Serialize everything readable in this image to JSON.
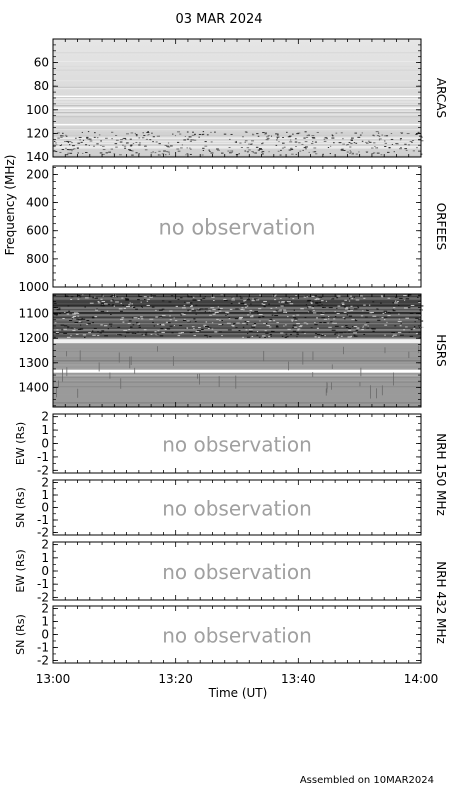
{
  "title": "03 MAR 2024",
  "footer": "Assembled on 10MAR2024",
  "xlabel": "Time (UT)",
  "x_ticks": [
    "13:00",
    "13:20",
    "13:40",
    "14:00"
  ],
  "freq_axis_label": "Frequency (MHz)",
  "no_observation_text": "no observation",
  "colors": {
    "frame": "#000000",
    "no_observation": "#a0a0a0"
  },
  "chart_data": [
    {
      "type": "heatmap",
      "instrument": "ARCAS",
      "observed": true,
      "ylim": [
        140,
        40
      ],
      "y_ticks": [
        60,
        80,
        100,
        120,
        140
      ],
      "xlim": [
        "13:00",
        "14:00"
      ]
    },
    {
      "type": "heatmap",
      "instrument": "ORFEES",
      "observed": false,
      "ylim": [
        1000,
        140
      ],
      "y_ticks": [
        200,
        400,
        600,
        800,
        1000
      ],
      "xlim": [
        "13:00",
        "14:00"
      ]
    },
    {
      "type": "heatmap",
      "instrument": "HSRS",
      "observed": true,
      "ylim": [
        1480,
        1020
      ],
      "y_ticks": [
        1100,
        1200,
        1300,
        1400
      ],
      "xlim": [
        "13:00",
        "14:00"
      ]
    },
    {
      "type": "line",
      "instrument": "NRH 150 MHz",
      "component": "EW (Rs)",
      "observed": false,
      "ylim": [
        -2.2,
        2.2
      ],
      "y_ticks": [
        2,
        1,
        0,
        -1,
        -2
      ],
      "xlim": [
        "13:00",
        "14:00"
      ]
    },
    {
      "type": "line",
      "instrument": "NRH 150 MHz",
      "component": "SN (Rs)",
      "observed": false,
      "ylim": [
        -2.2,
        2.2
      ],
      "y_ticks": [
        2,
        1,
        0,
        -1,
        -2
      ],
      "xlim": [
        "13:00",
        "14:00"
      ]
    },
    {
      "type": "line",
      "instrument": "NRH 432 MHz",
      "component": "EW (Rs)",
      "observed": false,
      "ylim": [
        -2.2,
        2.2
      ],
      "y_ticks": [
        2,
        1,
        0,
        -1,
        -2
      ],
      "xlim": [
        "13:00",
        "14:00"
      ]
    },
    {
      "type": "line",
      "instrument": "NRH 432 MHz",
      "component": "SN (Rs)",
      "observed": false,
      "ylim": [
        -2.2,
        2.2
      ],
      "y_ticks": [
        2,
        1,
        0,
        -1,
        -2
      ],
      "xlim": [
        "13:00",
        "14:00"
      ]
    }
  ]
}
